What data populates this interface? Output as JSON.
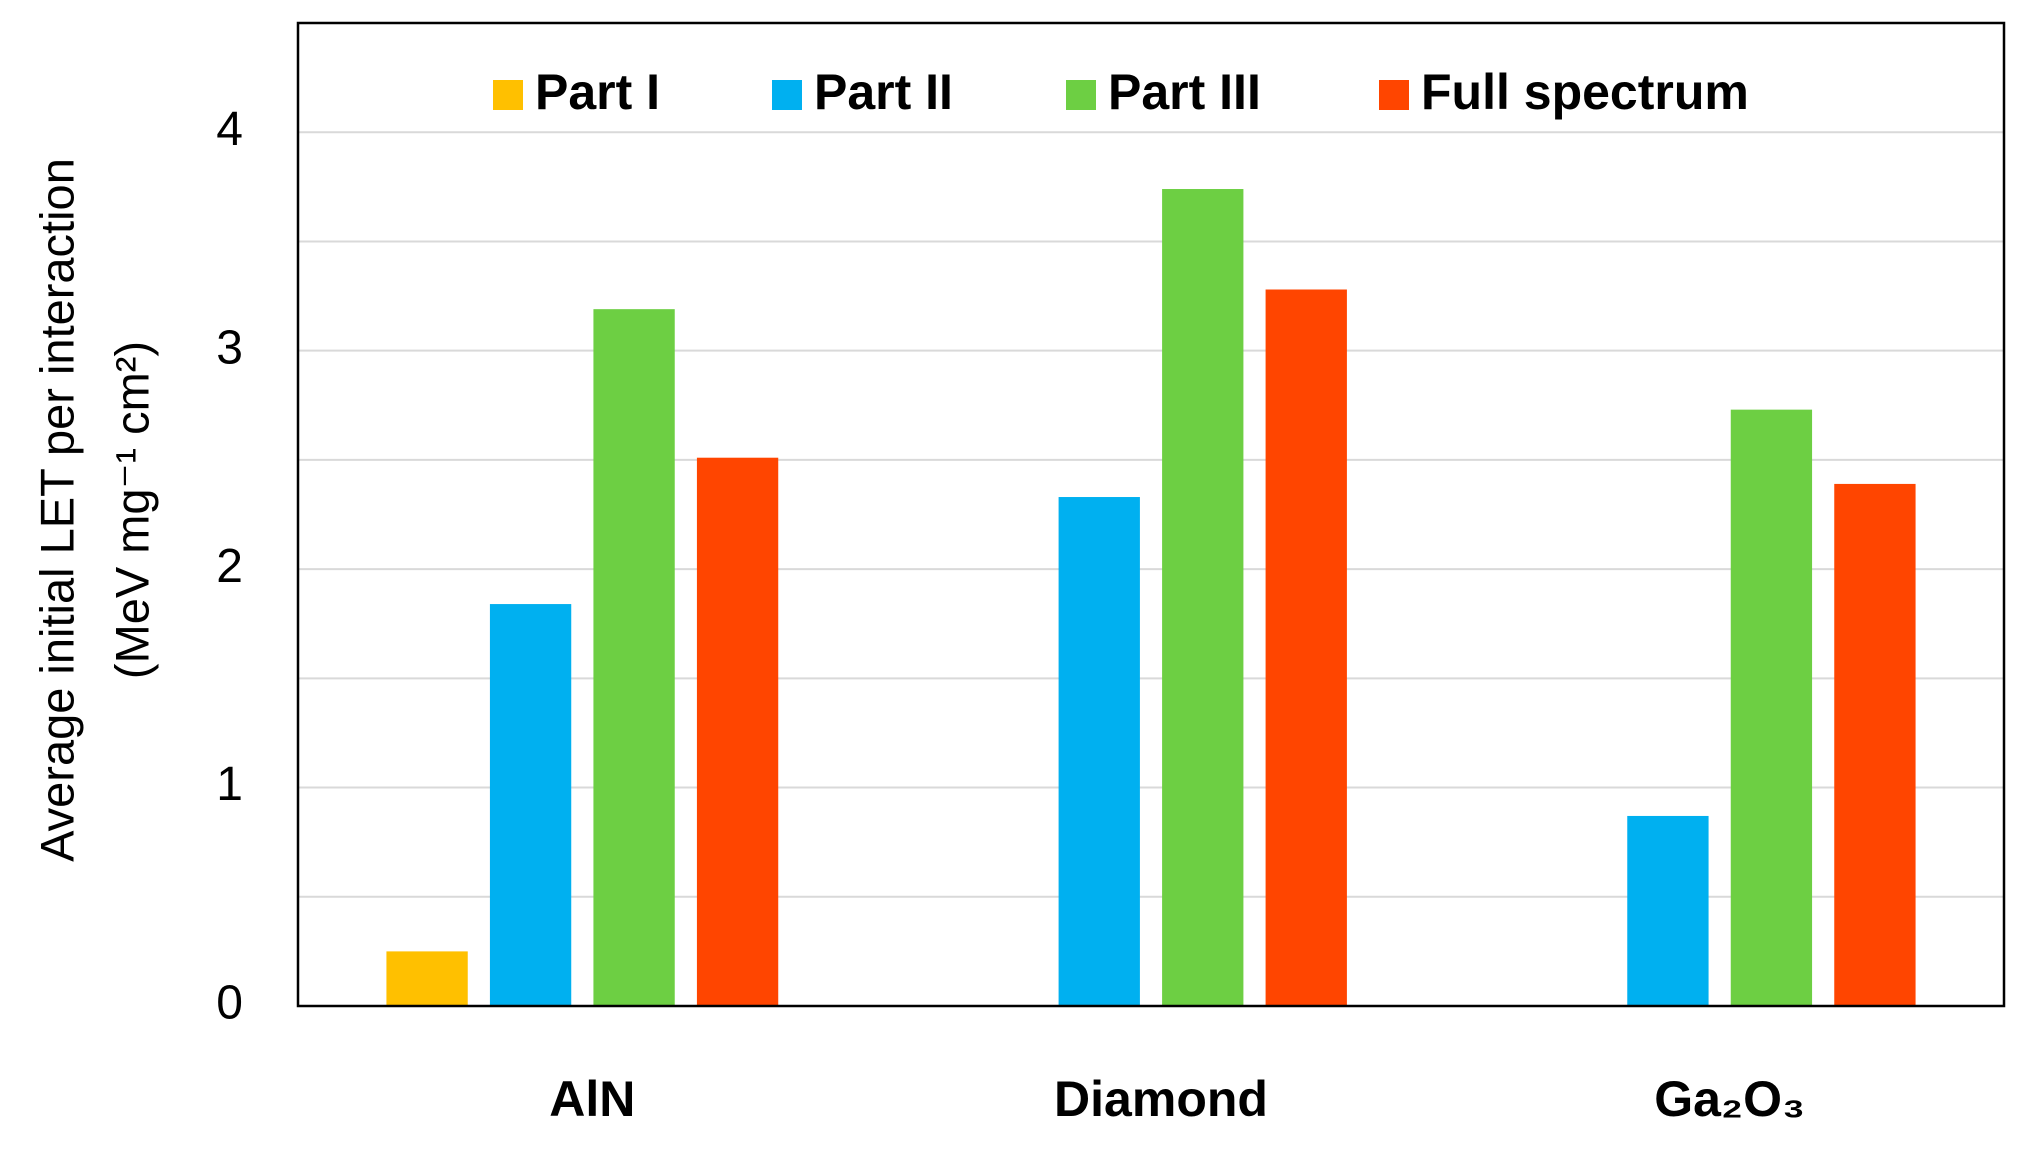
{
  "chart_data": {
    "type": "bar",
    "y_label_lines": [
      "Average initial LET  per interaction",
      "(MeV mg⁻¹ cm²)"
    ],
    "categories": [
      "AlN",
      "Diamond",
      "Ga₂O₃"
    ],
    "series": [
      {
        "name": "Part I",
        "color": "#ffc000",
        "values": [
          0.25,
          null,
          null
        ]
      },
      {
        "name": "Part II",
        "color": "#00b0f0",
        "values": [
          1.84,
          2.33,
          0.87
        ]
      },
      {
        "name": "Part III",
        "color": "#6dcf43",
        "values": [
          3.19,
          3.74,
          2.73
        ]
      },
      {
        "name": "Full spectrum",
        "color": "#ff4500",
        "values": [
          2.51,
          3.28,
          2.39
        ]
      }
    ],
    "ylim": [
      0,
      4.5
    ],
    "yticks": [
      0,
      1,
      2,
      3,
      4
    ],
    "grid_lines": [
      0.5,
      1,
      1.5,
      2,
      2.5,
      3,
      3.5,
      4
    ],
    "grid": true,
    "legend": "top"
  }
}
